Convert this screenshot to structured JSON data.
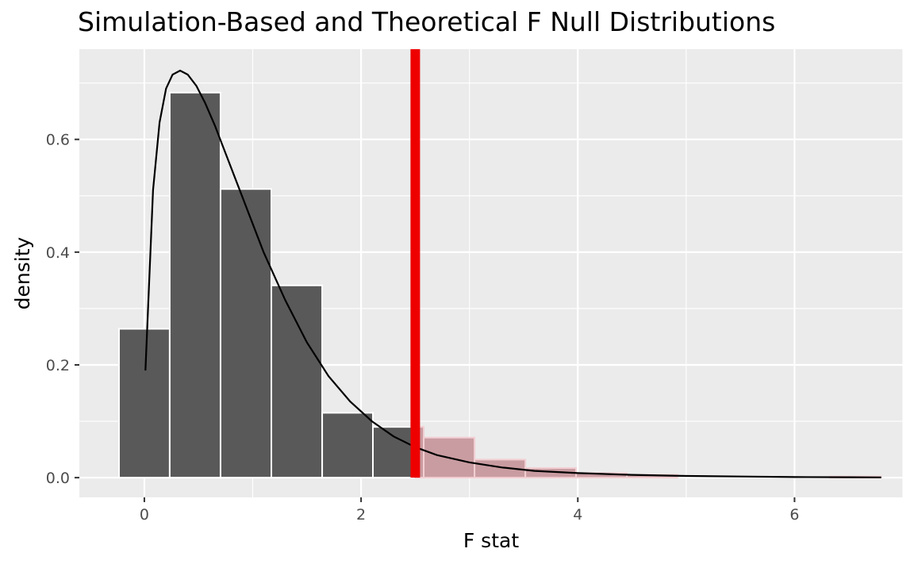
{
  "chart_data": {
    "type": "bar",
    "title": "Simulation-Based and Theoretical F Null Distributions",
    "xlabel": "F stat",
    "ylabel": "density",
    "xlim": [
      -0.6,
      7.0
    ],
    "ylim": [
      -0.035,
      0.76
    ],
    "x_ticks": [
      0,
      2,
      4,
      6
    ],
    "y_ticks": [
      0.0,
      0.2,
      0.4,
      0.6
    ],
    "x_tick_labels": [
      "0",
      "2",
      "4",
      "6"
    ],
    "y_tick_labels": [
      "0.0",
      "0.2",
      "0.4",
      "0.6"
    ],
    "grid": true,
    "bin_width": 0.4688,
    "bins": [
      {
        "x_start": -0.234,
        "x_end": 0.234,
        "density": 0.264,
        "shaded": false
      },
      {
        "x_start": 0.234,
        "x_end": 0.703,
        "density": 0.683,
        "shaded": false
      },
      {
        "x_start": 0.703,
        "x_end": 1.172,
        "density": 0.512,
        "shaded": false
      },
      {
        "x_start": 1.172,
        "x_end": 1.641,
        "density": 0.341,
        "shaded": false
      },
      {
        "x_start": 1.641,
        "x_end": 2.109,
        "density": 0.115,
        "shaded": false
      },
      {
        "x_start": 2.109,
        "x_end": 2.5,
        "density": 0.09,
        "shaded": false
      },
      {
        "x_start": 2.5,
        "x_end": 2.578,
        "density": 0.09,
        "shaded": true
      },
      {
        "x_start": 2.578,
        "x_end": 3.047,
        "density": 0.071,
        "shaded": true
      },
      {
        "x_start": 3.047,
        "x_end": 3.516,
        "density": 0.032,
        "shaded": true
      },
      {
        "x_start": 3.516,
        "x_end": 3.984,
        "density": 0.017,
        "shaded": true
      },
      {
        "x_start": 3.984,
        "x_end": 4.453,
        "density": 0.008,
        "shaded": true
      },
      {
        "x_start": 4.453,
        "x_end": 4.922,
        "density": 0.005,
        "shaded": true
      },
      {
        "x_start": 4.922,
        "x_end": 5.391,
        "density": 0.0,
        "shaded": true
      },
      {
        "x_start": 5.391,
        "x_end": 5.859,
        "density": 0.0,
        "shaded": true
      },
      {
        "x_start": 5.859,
        "x_end": 6.328,
        "density": 0.0,
        "shaded": true
      },
      {
        "x_start": 6.328,
        "x_end": 6.797,
        "density": 0.002,
        "shaded": true
      }
    ],
    "theoretical_curve": {
      "x": [
        0.01,
        0.08,
        0.14,
        0.2,
        0.26,
        0.33,
        0.4,
        0.48,
        0.56,
        0.65,
        0.75,
        0.9,
        1.1,
        1.3,
        1.5,
        1.7,
        1.9,
        2.1,
        2.3,
        2.5,
        2.7,
        3.0,
        3.3,
        3.6,
        4.0,
        4.5,
        5.0,
        5.5,
        6.0,
        6.5,
        6.8
      ],
      "y": [
        0.19,
        0.51,
        0.63,
        0.69,
        0.715,
        0.722,
        0.715,
        0.695,
        0.665,
        0.625,
        0.575,
        0.5,
        0.4,
        0.315,
        0.24,
        0.18,
        0.135,
        0.1,
        0.073,
        0.054,
        0.04,
        0.027,
        0.018,
        0.012,
        0.008,
        0.005,
        0.003,
        0.002,
        0.001,
        0.0007,
        0.0005
      ]
    },
    "observed_stat": 2.5,
    "colors": {
      "panel": "#ebebeb",
      "grid": "#ffffff",
      "bar_fill": "#595959",
      "bar_stroke": "#ffffff",
      "shade_fill": "#c99ca1",
      "shade_stroke": "#f2cfd3",
      "curve": "#000000",
      "obs_line": "#ee0000"
    }
  }
}
